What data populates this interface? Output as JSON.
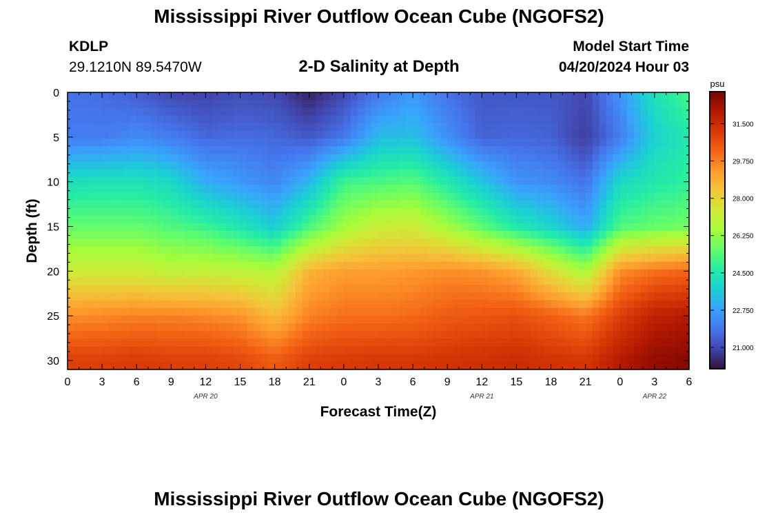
{
  "title": "Mississippi River Outflow Ocean Cube (NGOFS2)",
  "bottom_title": "Mississippi River Outflow Ocean Cube (NGOFS2)",
  "station": {
    "name": "KDLP",
    "coordinates": "29.1210N  89.5470W"
  },
  "subtitle": "2-D Salinity at Depth",
  "model_start": {
    "label": "Model Start Time",
    "value": "04/20/2024 Hour 03"
  },
  "colors": {
    "background": "#ffffff",
    "colormap": [
      "#30123b",
      "#4145ab",
      "#4675ed",
      "#39a2fc",
      "#1bcfd4",
      "#24eca6",
      "#61fc6c",
      "#a4fc3b",
      "#d1e834",
      "#f3c63a",
      "#fe9b2d",
      "#f36315",
      "#d93806",
      "#b11901",
      "#7a0402"
    ]
  },
  "chart_data": {
    "type": "heatmap",
    "title": "2-D Salinity at Depth",
    "xlabel": "Forecast Time(Z)",
    "ylabel": "Depth (ft)",
    "x_tick_labels": [
      "0",
      "3",
      "6",
      "9",
      "12",
      "15",
      "18",
      "21",
      "0",
      "3",
      "6",
      "9",
      "12",
      "15",
      "18",
      "21",
      "0",
      "3",
      "6"
    ],
    "x_range_hours": [
      0,
      54
    ],
    "date_labels": [
      {
        "label": "APR 20",
        "hour": 12
      },
      {
        "label": "APR 21",
        "hour": 36
      },
      {
        "label": "APR 22",
        "hour": 51
      }
    ],
    "y_ticks": [
      0,
      5,
      10,
      15,
      20,
      25,
      30
    ],
    "y_range": [
      0,
      31
    ],
    "y_inverted": true,
    "colorbar": {
      "unit": "psu",
      "ticks": [
        "21.000",
        "22.750",
        "24.500",
        "26.250",
        "28.000",
        "29.750",
        "31.500"
      ],
      "range": [
        20.0,
        33.0
      ]
    },
    "x_hours": [
      0,
      3,
      6,
      9,
      12,
      15,
      18,
      21,
      24,
      27,
      30,
      33,
      36,
      39,
      42,
      45,
      48,
      51,
      54
    ],
    "depths_ft": [
      0,
      5,
      10,
      15,
      20,
      25,
      30
    ],
    "salinity_psu": [
      [
        21.8,
        21.7,
        21.4,
        21.0,
        20.9,
        21.1,
        21.0,
        20.3,
        21.0,
        21.9,
        22.6,
        21.8,
        21.3,
        21.3,
        21.3,
        21.0,
        22.5,
        24.3,
        25.2
      ],
      [
        22.0,
        22.0,
        22.3,
        22.0,
        21.6,
        21.7,
        21.6,
        21.3,
        21.9,
        23.3,
        23.4,
        22.4,
        21.5,
        21.6,
        21.5,
        20.8,
        22.0,
        23.8,
        24.5
      ],
      [
        24.2,
        24.3,
        24.3,
        24.0,
        23.0,
        22.6,
        22.2,
        23.2,
        25.0,
        25.2,
        25.4,
        24.5,
        23.5,
        22.5,
        22.3,
        21.8,
        24.0,
        24.5,
        24.8
      ],
      [
        25.6,
        25.6,
        25.6,
        25.3,
        25.0,
        24.4,
        23.7,
        25.2,
        26.5,
        27.2,
        27.3,
        26.5,
        25.5,
        24.5,
        23.9,
        22.9,
        25.3,
        25.6,
        25.8
      ],
      [
        27.3,
        27.3,
        27.3,
        27.0,
        27.1,
        27.0,
        26.8,
        28.8,
        29.2,
        29.2,
        29.3,
        29.5,
        29.4,
        29.0,
        27.7,
        26.6,
        29.5,
        30.0,
        30.2
      ],
      [
        29.5,
        29.6,
        29.7,
        29.7,
        29.6,
        29.4,
        28.6,
        29.7,
        30.0,
        30.0,
        30.1,
        30.4,
        30.5,
        30.6,
        30.3,
        29.9,
        31.0,
        31.8,
        32.0
      ],
      [
        31.0,
        31.0,
        31.1,
        31.0,
        31.0,
        30.8,
        30.4,
        31.0,
        31.1,
        31.2,
        31.2,
        31.3,
        31.4,
        31.5,
        31.3,
        31.2,
        32.0,
        32.6,
        32.8
      ]
    ]
  }
}
